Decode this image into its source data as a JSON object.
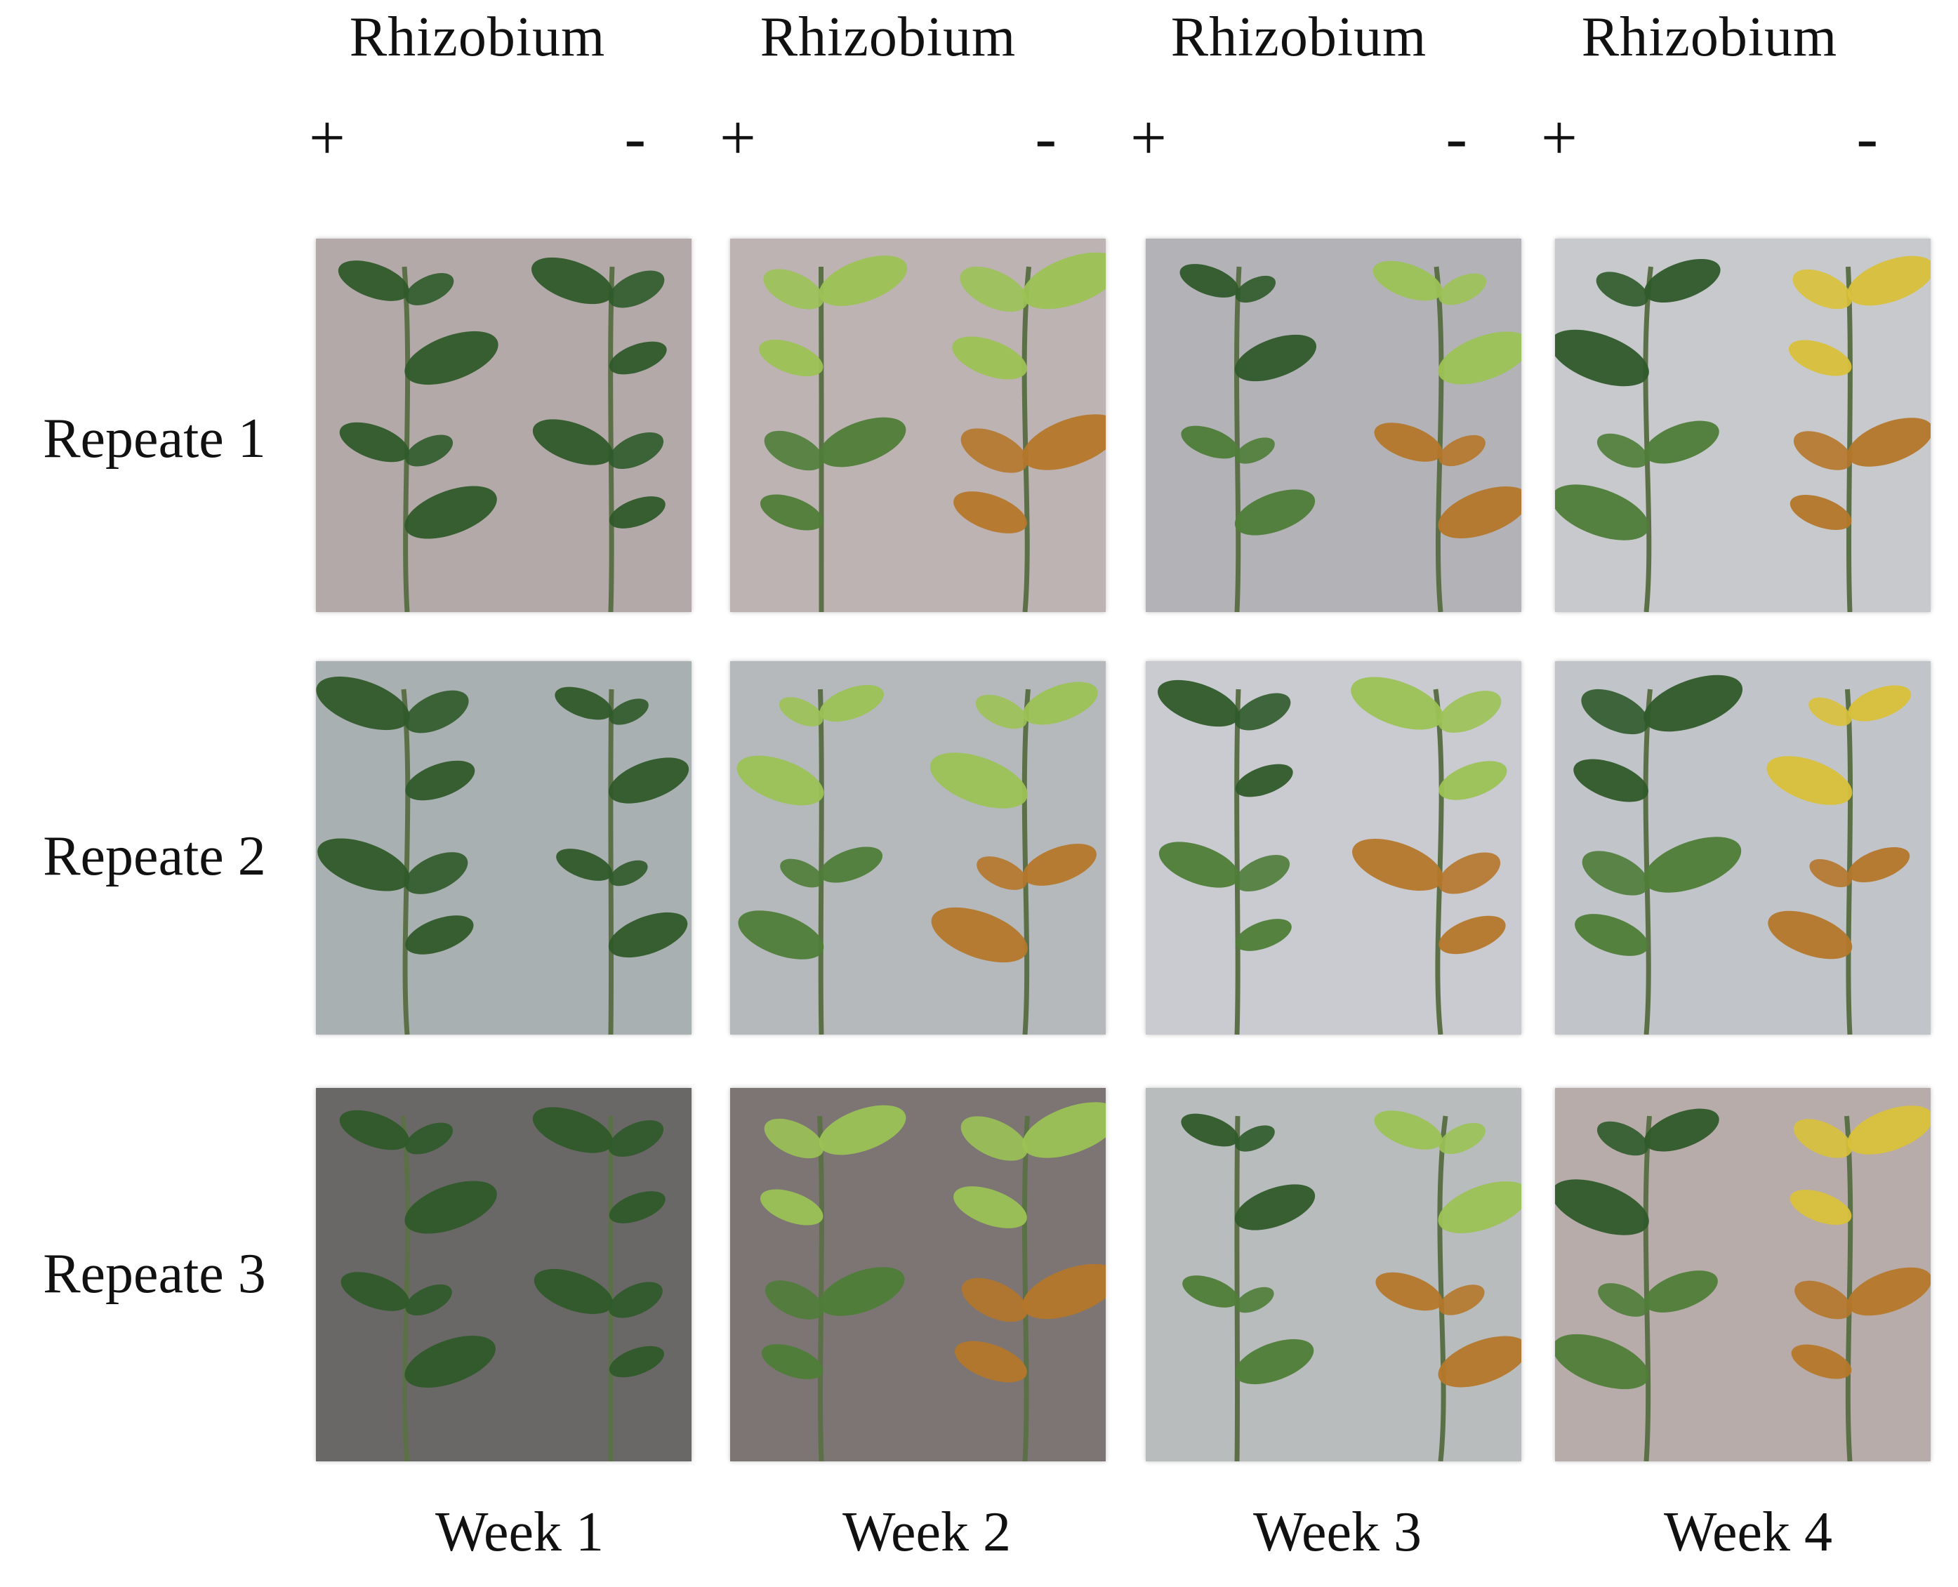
{
  "header": {
    "columns": [
      {
        "title": "Rhizobium",
        "plus": "+",
        "minus": "-"
      },
      {
        "title": "Rhizobium",
        "plus": "+",
        "minus": "-"
      },
      {
        "title": "Rhizobium",
        "plus": "+",
        "minus": "-"
      },
      {
        "title": "Rhizobium",
        "plus": "+",
        "minus": "-"
      }
    ]
  },
  "rows": [
    {
      "label": "Repeate 1"
    },
    {
      "label": "Repeate 2"
    },
    {
      "label": "Repeate 3"
    }
  ],
  "weeks": [
    {
      "label": "Week 1"
    },
    {
      "label": "Week 2"
    },
    {
      "label": "Week 3"
    },
    {
      "label": "Week 4"
    }
  ],
  "colors": {
    "leaf_dark": "#2f5a2a",
    "leaf_mid": "#4f7d38",
    "leaf_light": "#9cc255",
    "leaf_yellow": "#d9c13a",
    "leaf_brown": "#b5772a",
    "stem": "#5c7048"
  }
}
